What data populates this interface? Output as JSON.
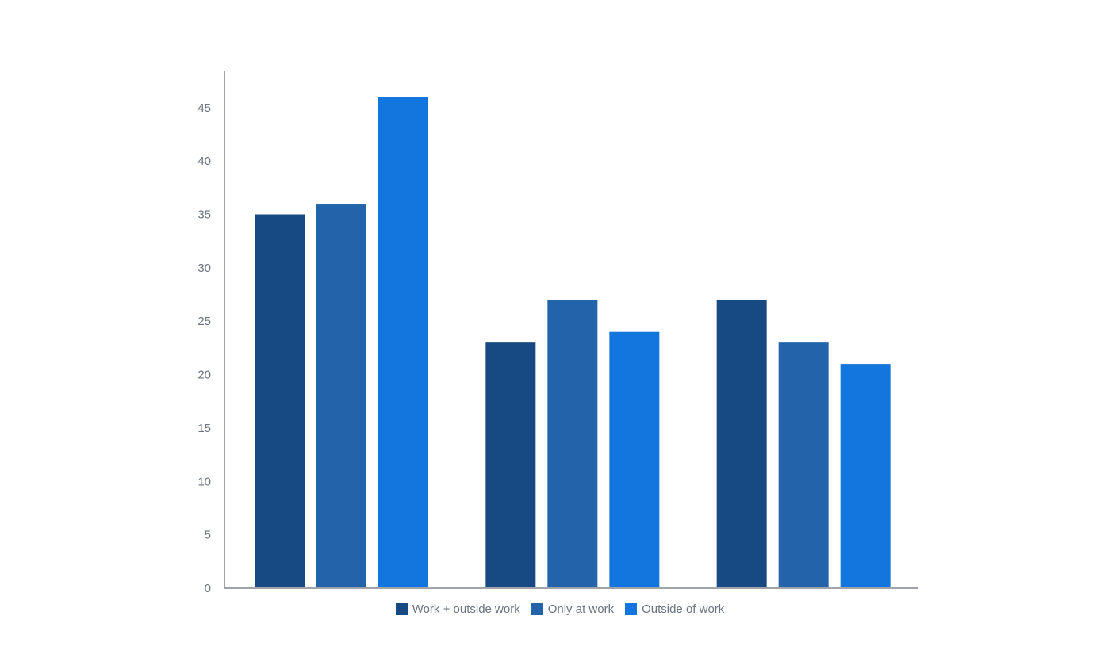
{
  "chart_data": {
    "type": "bar",
    "title": "",
    "xlabel": "",
    "ylabel": "",
    "categories": [
      "",
      "",
      ""
    ],
    "ylim": [
      0,
      48.4
    ],
    "yticks": [
      0,
      5,
      10,
      15,
      20,
      25,
      30,
      35,
      40,
      45
    ],
    "grid": false,
    "legend_position": "bottom",
    "series": [
      {
        "name": "Work + outside work",
        "color": "#174a82",
        "values": [
          35,
          23,
          27
        ]
      },
      {
        "name": "Only at work",
        "color": "#2263a9",
        "values": [
          36,
          27,
          23
        ]
      },
      {
        "name": "Outside of work",
        "color": "#1375de",
        "values": [
          46,
          24,
          21
        ]
      }
    ]
  }
}
